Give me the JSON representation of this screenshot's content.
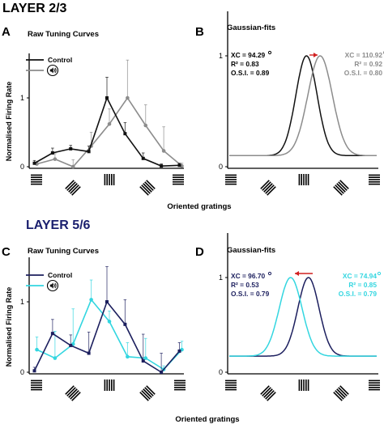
{
  "layers": [
    {
      "title": "LAYER 2/3",
      "title_color": "#000000",
      "colors": {
        "control": "#111111",
        "treated": "#8c8c8c"
      },
      "x_label": "Oriented gratings",
      "y_label": "Normalised Firing Rate",
      "orientation_icons": [
        "horizontal-grating-icon",
        "diagonal-grating-icon",
        "vertical-grating-icon",
        "antidiagonal-grating-icon",
        "horizontal-grating-icon"
      ],
      "panels": [
        {
          "letter": "A",
          "title": "Raw Tuning Curves",
          "legend": {
            "label": "Control",
            "treated_icon": "speaker-icon"
          },
          "yticks": [
            "0",
            "1"
          ],
          "chart_data": {
            "type": "line",
            "x": [
              0,
              1,
              2,
              3,
              4,
              5,
              6,
              7,
              8
            ],
            "ylim": [
              0,
              1.6
            ],
            "series": [
              {
                "key": "control",
                "name": "Control",
                "values": [
                  0.05,
                  0.2,
                  0.26,
                  0.22,
                  1.0,
                  0.48,
                  0.12,
                  0.01,
                  0.02
                ],
                "err": [
                  0.04,
                  0.07,
                  0.05,
                  0.08,
                  0.3,
                  0.16,
                  0.08,
                  0.03,
                  0.03
                ]
              },
              {
                "key": "treated",
                "values": [
                  0.04,
                  0.11,
                  0.0,
                  0.3,
                  0.62,
                  1.0,
                  0.6,
                  0.23,
                  0.01
                ],
                "err": [
                  0.03,
                  0.08,
                  0.1,
                  0.2,
                  0.22,
                  0.55,
                  0.3,
                  0.35,
                  0.04
                ]
              }
            ]
          }
        },
        {
          "letter": "B",
          "title": "Gaussian-fits",
          "yticks": [
            "0",
            "1"
          ],
          "arrow": "right",
          "stats": [
            {
              "key": "control",
              "xc": "XC = 94.29",
              "r2": "R² = 0.83",
              "osi": "O.S.I. = 0.89"
            },
            {
              "key": "treated",
              "xc": "XC = 110.92",
              "r2": "R² = 0.92",
              "osi": "O.S.I. = 0.80"
            }
          ],
          "chart_data": {
            "type": "line",
            "x_range": [
              0,
              180
            ],
            "ylim": [
              0,
              1.05
            ],
            "series": [
              {
                "key": "control",
                "center": 94.29,
                "sigma": 13,
                "baseline": 0.1,
                "peak": 1.0
              },
              {
                "key": "treated",
                "center": 110.92,
                "sigma": 15,
                "baseline": 0.1,
                "peak": 1.0
              }
            ]
          }
        }
      ]
    },
    {
      "title": "LAYER 5/6",
      "title_color": "#1a1f6e",
      "colors": {
        "control": "#1c1f5e",
        "treated": "#33d6e0"
      },
      "x_label": "Oriented gratings",
      "y_label": "Normalised Firing Rate",
      "orientation_icons": [
        "horizontal-grating-icon",
        "diagonal-grating-icon",
        "vertical-grating-icon",
        "antidiagonal-grating-icon",
        "horizontal-grating-icon"
      ],
      "panels": [
        {
          "letter": "C",
          "title": "Raw Tuning Curves",
          "legend": {
            "label": "Control",
            "treated_icon": "speaker-icon"
          },
          "yticks": [
            "0",
            "1"
          ],
          "chart_data": {
            "type": "line",
            "x": [
              0,
              1,
              2,
              3,
              4,
              5,
              6,
              7,
              8
            ],
            "ylim": [
              0,
              1.55
            ],
            "series": [
              {
                "key": "control",
                "name": "Control",
                "values": [
                  0.02,
                  0.55,
                  0.38,
                  0.27,
                  1.0,
                  0.68,
                  0.16,
                  0.0,
                  0.3
                ],
                "err": [
                  0.05,
                  0.2,
                  0.15,
                  0.3,
                  0.5,
                  0.35,
                  0.38,
                  0.27,
                  0.12
                ]
              },
              {
                "key": "treated",
                "values": [
                  0.32,
                  0.2,
                  0.4,
                  1.03,
                  0.72,
                  0.22,
                  0.2,
                  0.04,
                  0.32
                ],
                "err": [
                  0.18,
                  0.38,
                  0.5,
                  0.28,
                  0.15,
                  0.2,
                  0.28,
                  0.05,
                  0.12
                ]
              }
            ]
          }
        },
        {
          "letter": "D",
          "title": "Gaussian-fits",
          "yticks": [
            "0",
            "1"
          ],
          "arrow": "left",
          "stats": [
            {
              "key": "control",
              "xc": "XC = 96.70",
              "r2": "R² = 0.53",
              "osi": "O.S.I. = 0.79"
            },
            {
              "key": "treated",
              "xc": "XC = 74.94",
              "r2": "R² = 0.85",
              "osi": "O.S.I. = 0.79"
            }
          ],
          "chart_data": {
            "type": "line",
            "x_range": [
              0,
              180
            ],
            "ylim": [
              0,
              1.05
            ],
            "series": [
              {
                "key": "control",
                "center": 96.7,
                "sigma": 13,
                "baseline": 0.17,
                "peak": 1.0
              },
              {
                "key": "treated",
                "center": 74.94,
                "sigma": 14,
                "baseline": 0.17,
                "peak": 1.0
              }
            ]
          }
        }
      ]
    }
  ]
}
